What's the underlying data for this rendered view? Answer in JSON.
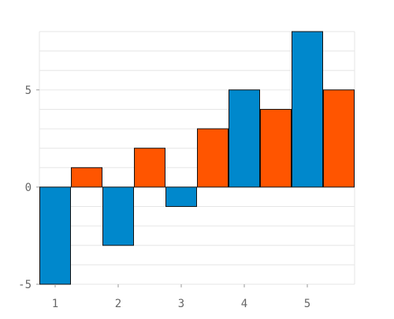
{
  "chart_data": {
    "type": "bar",
    "title": "",
    "xlabel": "",
    "ylabel": "",
    "categories": [
      "1",
      "2",
      "3",
      "4",
      "5"
    ],
    "series": [
      {
        "values": [
          -5,
          -3,
          -1,
          5,
          8
        ],
        "color": "#0088cc"
      },
      {
        "values": [
          1,
          2,
          3,
          4,
          5
        ],
        "color": "#ff5500"
      }
    ],
    "ylim": [
      -5,
      8
    ],
    "yticks": [
      -5,
      0,
      5
    ],
    "grid": true,
    "legend": "none"
  }
}
